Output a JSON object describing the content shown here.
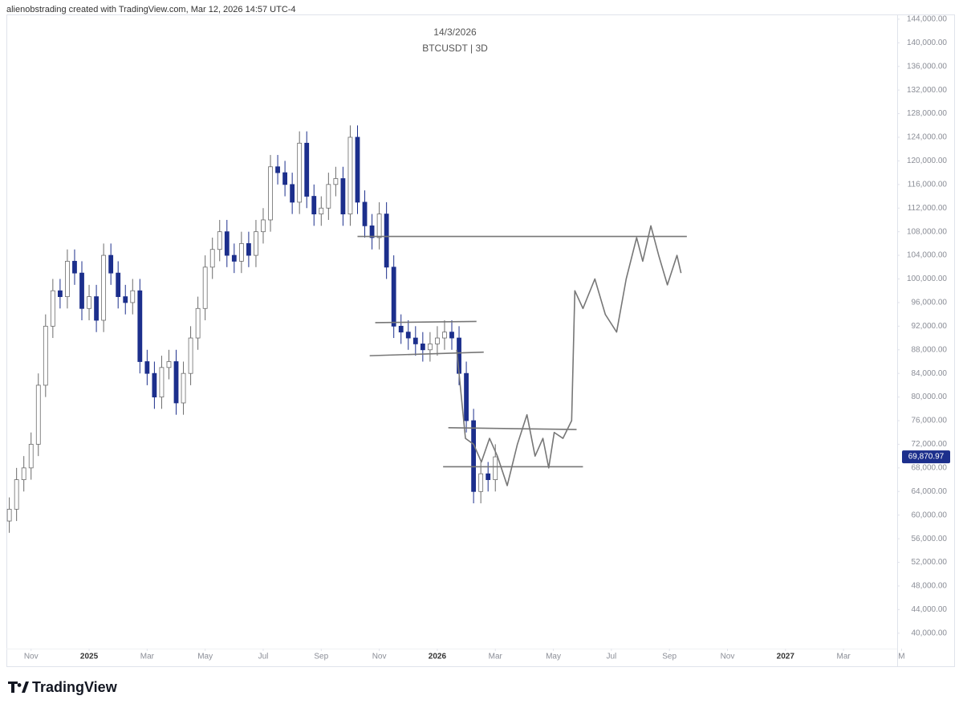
{
  "header": {
    "text": "alienobstrading created with TradingView.com, Mar 12, 2026 14:57 UTC-4"
  },
  "chart_data": {
    "type": "candlestick",
    "title": "14/3/2026",
    "subtitle": "BTCUSDT | 3D",
    "x": [
      -0.75,
      -0.5,
      -0.25,
      0,
      0.25,
      0.5,
      0.75,
      1,
      1.25,
      1.5,
      1.75,
      2,
      2.25,
      2.5,
      2.75,
      3,
      3.25,
      3.5,
      3.75,
      4,
      4.25,
      4.5,
      4.75,
      5,
      5.25,
      5.5,
      5.75,
      6,
      6.25,
      6.5,
      6.75,
      7,
      7.25,
      7.5,
      7.75,
      8,
      8.25,
      8.5,
      8.75,
      9,
      9.25,
      9.5,
      9.75,
      10,
      10.25,
      10.5,
      10.75,
      11,
      11.25,
      11.5,
      11.75,
      12,
      12.25,
      12.5,
      12.75,
      13,
      13.25,
      13.5,
      13.75,
      14,
      14.25,
      14.5,
      14.75,
      15,
      15.25,
      15.5,
      15.75,
      16
    ],
    "open": [
      59000,
      61000,
      66000,
      68000,
      72000,
      82000,
      92000,
      98000,
      97000,
      103000,
      101000,
      95000,
      97000,
      93000,
      104000,
      101000,
      97000,
      96000,
      98000,
      86000,
      84000,
      80000,
      85000,
      86000,
      79000,
      84000,
      90000,
      95000,
      102000,
      105000,
      108000,
      104000,
      103000,
      106000,
      104000,
      108000,
      110000,
      119000,
      118000,
      116000,
      113000,
      123000,
      114000,
      111000,
      112000,
      116000,
      117000,
      111000,
      124000,
      113000,
      109000,
      107000,
      111000,
      102000,
      92000,
      91000,
      90000,
      89000,
      88000,
      89000,
      90000,
      91000,
      90000,
      84000,
      76000,
      64000,
      67000,
      66000
    ],
    "high": [
      63000,
      68000,
      70000,
      74000,
      84000,
      94000,
      100000,
      100000,
      105000,
      105000,
      103000,
      99000,
      99000,
      106000,
      106000,
      103000,
      99000,
      100000,
      100000,
      88000,
      86000,
      87000,
      88000,
      88000,
      86000,
      92000,
      97000,
      104000,
      107000,
      110000,
      110000,
      106000,
      108000,
      108000,
      110000,
      112000,
      121000,
      121000,
      120000,
      118000,
      125000,
      125000,
      116000,
      114000,
      118000,
      119000,
      119000,
      126000,
      126000,
      115000,
      111000,
      113000,
      113000,
      104000,
      94000,
      93000,
      92000,
      91000,
      91000,
      92000,
      93000,
      93000,
      92000,
      86000,
      78000,
      69000,
      69000,
      72000
    ],
    "low": [
      57000,
      59000,
      64000,
      66000,
      70000,
      80000,
      90000,
      95000,
      95000,
      99000,
      93000,
      93000,
      91000,
      91000,
      99000,
      95000,
      94000,
      94000,
      84000,
      82000,
      78000,
      78000,
      83000,
      77000,
      77000,
      82000,
      88000,
      93000,
      100000,
      103000,
      102000,
      101000,
      101000,
      102000,
      102000,
      106000,
      108000,
      116000,
      114000,
      111000,
      111000,
      112000,
      109000,
      109000,
      110000,
      114000,
      109000,
      109000,
      111000,
      107000,
      105000,
      105000,
      100000,
      90000,
      89000,
      88000,
      87000,
      86000,
      86000,
      87000,
      88000,
      88000,
      82000,
      74000,
      62000,
      62000,
      64000,
      64000
    ],
    "close": [
      61000,
      66000,
      68000,
      72000,
      82000,
      92000,
      98000,
      97000,
      103000,
      101000,
      95000,
      97000,
      93000,
      104000,
      101000,
      97000,
      96000,
      98000,
      86000,
      84000,
      80000,
      85000,
      86000,
      79000,
      84000,
      90000,
      95000,
      102000,
      105000,
      108000,
      104000,
      103000,
      106000,
      104000,
      108000,
      110000,
      119000,
      118000,
      116000,
      113000,
      123000,
      114000,
      111000,
      112000,
      116000,
      117000,
      111000,
      124000,
      113000,
      109000,
      107000,
      111000,
      102000,
      92000,
      91000,
      90000,
      89000,
      88000,
      89000,
      90000,
      91000,
      90000,
      84000,
      76000,
      64000,
      67000,
      66000,
      69870.97
    ],
    "up_color": "#ffffff",
    "down_color": "#1c2f8c",
    "xlim": [
      -0.85,
      29.85
    ],
    "ylim": [
      34400,
      144800
    ],
    "xticks": [
      {
        "value": 0,
        "label": "Nov"
      },
      {
        "value": 2,
        "label": "2025"
      },
      {
        "value": 4,
        "label": "Mar"
      },
      {
        "value": 6,
        "label": "May"
      },
      {
        "value": 8,
        "label": "Jul"
      },
      {
        "value": 10,
        "label": "Sep"
      },
      {
        "value": 12,
        "label": "Nov"
      },
      {
        "value": 14,
        "label": "2026"
      },
      {
        "value": 16,
        "label": "Mar"
      },
      {
        "value": 18,
        "label": "May"
      },
      {
        "value": 20,
        "label": "Jul"
      },
      {
        "value": 22,
        "label": "Sep"
      },
      {
        "value": 24,
        "label": "Nov"
      },
      {
        "value": 26,
        "label": "2027"
      },
      {
        "value": 28,
        "label": "Mar"
      },
      {
        "value": 30,
        "label": "M"
      }
    ],
    "yticks": [
      {
        "value": 40000,
        "label": "40,000.00"
      },
      {
        "value": 44000,
        "label": "44,000.00"
      },
      {
        "value": 48000,
        "label": "48,000.00"
      },
      {
        "value": 52000,
        "label": "52,000.00"
      },
      {
        "value": 56000,
        "label": "56,000.00"
      },
      {
        "value": 60000,
        "label": "60,000.00"
      },
      {
        "value": 64000,
        "label": "64,000.00"
      },
      {
        "value": 68000,
        "label": "68,000.00"
      },
      {
        "value": 72000,
        "label": "72,000.00"
      },
      {
        "value": 76000,
        "label": "76,000.00"
      },
      {
        "value": 80000,
        "label": "80,000.00"
      },
      {
        "value": 84000,
        "label": "84,000.00"
      },
      {
        "value": 88000,
        "label": "88,000.00"
      },
      {
        "value": 92000,
        "label": "92,000.00"
      },
      {
        "value": 96000,
        "label": "96,000.00"
      },
      {
        "value": 100000,
        "label": "100,000.00"
      },
      {
        "value": 104000,
        "label": "104,000.00"
      },
      {
        "value": 108000,
        "label": "108,000.00"
      },
      {
        "value": 112000,
        "label": "112,000.00"
      },
      {
        "value": 116000,
        "label": "116,000.00"
      },
      {
        "value": 120000,
        "label": "120,000.00"
      },
      {
        "value": 124000,
        "label": "124,000.00"
      },
      {
        "value": 128000,
        "label": "128,000.00"
      },
      {
        "value": 132000,
        "label": "132,000.00"
      },
      {
        "value": 136000,
        "label": "136,000.00"
      },
      {
        "value": 140000,
        "label": "140,000.00"
      },
      {
        "value": 144000,
        "label": "144,000.00"
      }
    ],
    "last_price": {
      "value": 69870.97,
      "label": "69,870.97"
    },
    "drawing_color": "#777777",
    "drawings": [
      {
        "x": [
          11.25,
          22.6
        ],
        "y": [
          107200,
          107200
        ]
      },
      {
        "x": [
          11.86,
          15.35
        ],
        "y": [
          92600,
          92800
        ]
      },
      {
        "x": [
          11.67,
          15.6
        ],
        "y": [
          87000,
          87600
        ]
      },
      {
        "x": [
          14.38,
          18.8
        ],
        "y": [
          74800,
          74500
        ]
      },
      {
        "x": [
          14.2,
          19.02
        ],
        "y": [
          68200,
          68200
        ]
      },
      {
        "x": [
          14.67,
          14.97,
          15.25,
          15.52,
          15.8,
          16.07,
          16.41,
          16.76,
          17.09,
          17.37,
          17.64,
          17.84,
          18.03,
          18.33,
          18.63,
          18.74,
          19.02,
          19.43,
          19.79,
          20.18,
          20.51,
          20.87,
          21.08,
          21.36,
          21.63,
          21.93,
          22.26,
          22.4
        ],
        "y": [
          88000,
          73000,
          72000,
          69000,
          73000,
          70000,
          65000,
          72000,
          77000,
          70000,
          73000,
          68000,
          74000,
          73000,
          76000,
          98000,
          95000,
          100000,
          94000,
          91000,
          100000,
          107000,
          103000,
          109000,
          104000,
          99000,
          104000,
          101000
        ]
      }
    ]
  },
  "footer": {
    "brand": "TradingView"
  }
}
